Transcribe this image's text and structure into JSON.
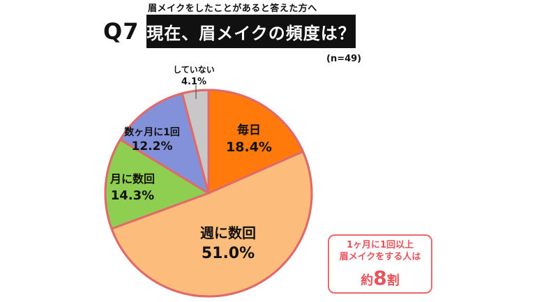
{
  "header": {
    "subtitle": "眉メイクをしたことがあると答えた方へ",
    "question_number": "Q7",
    "title": "現在、眉メイクの頻度は？",
    "n_label": "(n=49)"
  },
  "chart_data": {
    "type": "pie",
    "title": "現在、眉メイクの頻度は？",
    "slices": [
      {
        "label": "毎日",
        "value": 18.4,
        "value_label": "18.4%",
        "color": "#ff7a0a"
      },
      {
        "label": "週に数回",
        "value": 51.0,
        "value_label": "51.0%",
        "color": "#fcbc7c"
      },
      {
        "label": "月に数回",
        "value": 14.3,
        "value_label": "14.3%",
        "color": "#8ecf52"
      },
      {
        "label": "数ヶ月に1回",
        "value": 12.2,
        "value_label": "12.2%",
        "color": "#8391da"
      },
      {
        "label": "していない",
        "value": 4.1,
        "value_label": "4.1%",
        "color": "#c8c8c8"
      }
    ],
    "start_angle_deg": 0,
    "direction": "clockwise",
    "border_color": "#e06a6a"
  },
  "callout": {
    "line1": "1ヶ月に1回以上",
    "line2": "眉メイクをする人は",
    "line3_prefix": "約",
    "line3_number": "8",
    "line3_suffix": "割"
  }
}
